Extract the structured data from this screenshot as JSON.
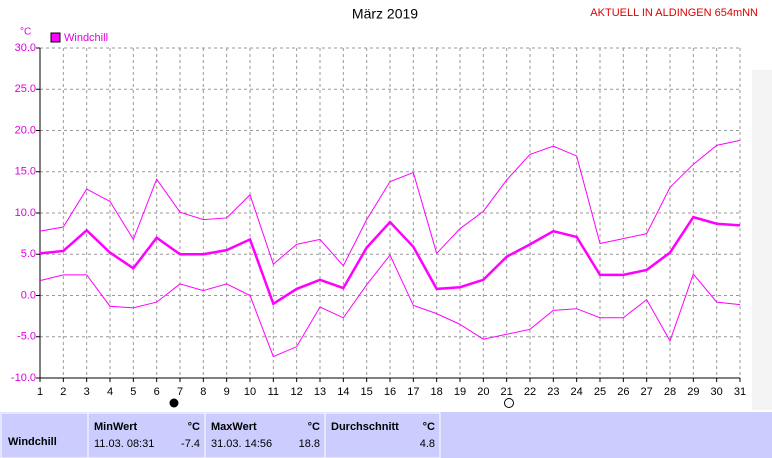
{
  "chart_data": {
    "type": "line",
    "title": "März 2019",
    "subtitle": "AKTUELL IN ALDINGEN 654mNN",
    "y_label": "°C",
    "x": [
      1,
      2,
      3,
      4,
      5,
      6,
      7,
      8,
      9,
      10,
      11,
      12,
      13,
      14,
      15,
      16,
      17,
      18,
      19,
      20,
      21,
      22,
      23,
      24,
      25,
      26,
      27,
      28,
      29,
      30,
      31
    ],
    "xlim": [
      1,
      31
    ],
    "xticks": [
      1,
      2,
      3,
      4,
      5,
      6,
      7,
      8,
      9,
      10,
      11,
      12,
      13,
      14,
      15,
      16,
      17,
      18,
      19,
      20,
      21,
      22,
      23,
      24,
      25,
      26,
      27,
      28,
      29,
      30,
      31
    ],
    "ylim": [
      -10,
      30
    ],
    "yticks": [
      {
        "value": 30,
        "label": "30.0"
      },
      {
        "value": 25,
        "label": "25.0"
      },
      {
        "value": 20,
        "label": "20.0"
      },
      {
        "value": 15,
        "label": "15.0"
      },
      {
        "value": 10,
        "label": "10.0"
      },
      {
        "value": 5,
        "label": "5.0"
      },
      {
        "value": 0,
        "label": "0.0"
      },
      {
        "value": -5,
        "label": "-5.0"
      },
      {
        "value": -10,
        "label": "-10.0"
      }
    ],
    "grid": true,
    "legend": "top-left",
    "series": [
      {
        "name": "Windchill",
        "color": "#ff00ff",
        "width": 2.5,
        "values": [
          5.1,
          5.4,
          7.9,
          5.2,
          3.3,
          7.0,
          5.0,
          5.0,
          5.5,
          6.8,
          -1.0,
          0.8,
          1.9,
          0.9,
          5.8,
          8.9,
          5.9,
          0.8,
          1.0,
          1.9,
          4.7,
          6.2,
          7.8,
          7.1,
          2.5,
          2.5,
          3.1,
          5.2,
          9.5,
          8.7,
          8.5
        ]
      },
      {
        "color": "#ff00ff",
        "width": 1,
        "values": [
          7.8,
          8.3,
          12.9,
          11.4,
          6.8,
          14.1,
          10.1,
          9.2,
          9.4,
          12.2,
          3.8,
          6.2,
          6.8,
          3.6,
          9.2,
          13.8,
          14.9,
          5.1,
          8.1,
          10.2,
          14.0,
          17.1,
          18.1,
          16.9,
          6.3,
          6.9,
          7.5,
          13.1,
          15.9,
          18.2,
          18.8
        ]
      },
      {
        "color": "#ff00ff",
        "width": 1,
        "values": [
          1.8,
          2.5,
          2.5,
          -1.3,
          -1.5,
          -0.8,
          1.4,
          0.6,
          1.4,
          0.0,
          -7.4,
          -6.2,
          -1.4,
          -2.7,
          1.3,
          4.9,
          -1.2,
          -2.2,
          -3.5,
          -5.3,
          -4.7,
          -4.1,
          -1.8,
          -1.6,
          -2.7,
          -2.7,
          -0.5,
          -5.5,
          2.6,
          -0.8,
          -1.1
        ]
      }
    ]
  },
  "table": {
    "row_label": "Windchill",
    "columns": [
      {
        "header": "MinWert",
        "unit": "°C",
        "time": "11.03.  08:31",
        "value": -7.4
      },
      {
        "header": "MaxWert",
        "unit": "°C",
        "time": "31.03.  14:56",
        "value": 18.8
      },
      {
        "header": "Durchschnitt",
        "unit": "°C",
        "value": 4.8
      }
    ]
  }
}
